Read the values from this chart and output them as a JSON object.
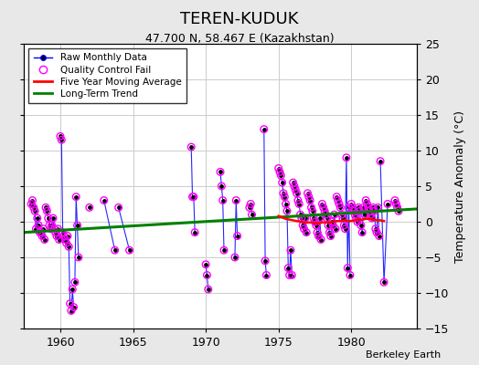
{
  "title": "TEREN-KUDUK",
  "subtitle": "47.700 N, 58.467 E (Kazakhstan)",
  "ylabel": "Temperature Anomaly (°C)",
  "watermark": "Berkeley Earth",
  "xlim": [
    1957.5,
    1984.5
  ],
  "ylim": [
    -15,
    25
  ],
  "yticks": [
    -15,
    -10,
    -5,
    0,
    5,
    10,
    15,
    20,
    25
  ],
  "xticks": [
    1960,
    1965,
    1970,
    1975,
    1980
  ],
  "bg_color": "#e8e8e8",
  "plot_bg_color": "#ffffff",
  "grid_color": "#cccccc",
  "raw_monthly": [
    {
      "year": 1958,
      "months": [
        2.5,
        3.0,
        2.0,
        1.5,
        -1.0,
        0.5,
        -0.5,
        -1.5,
        -1.5,
        -2.0,
        -1.0,
        -2.5
      ]
    },
    {
      "year": 1959,
      "months": [
        2.0,
        1.5,
        0.5,
        -0.5,
        -1.0,
        -0.5,
        0.5,
        -1.0,
        -1.5,
        -2.0,
        -1.0,
        -2.5
      ]
    },
    {
      "year": 1960,
      "months": [
        12.0,
        11.5,
        -1.5,
        -2.0,
        -2.5,
        -3.0,
        -2.0,
        -3.5,
        -11.5,
        -12.5,
        -9.5,
        -12.0
      ]
    },
    {
      "year": 1961,
      "months": [
        -8.5,
        3.5,
        -0.5,
        -5.0,
        null,
        null,
        null,
        null,
        null,
        null,
        null,
        null
      ]
    },
    {
      "year": 1962,
      "months": [
        2.0,
        null,
        null,
        null,
        null,
        null,
        null,
        null,
        null,
        null,
        null,
        null
      ]
    },
    {
      "year": 1963,
      "months": [
        3.0,
        null,
        null,
        null,
        null,
        null,
        null,
        null,
        null,
        -4.0,
        null,
        null
      ]
    },
    {
      "year": 1964,
      "months": [
        2.0,
        null,
        null,
        null,
        null,
        null,
        null,
        null,
        null,
        -4.0,
        null,
        null
      ]
    },
    {
      "year": 1969,
      "months": [
        10.5,
        3.5,
        3.5,
        -1.5,
        null,
        null,
        null,
        null,
        null,
        null,
        null,
        null
      ]
    },
    {
      "year": 1970,
      "months": [
        -6.0,
        -7.5,
        -9.5,
        null,
        null,
        null,
        null,
        null,
        null,
        null,
        null,
        null
      ]
    },
    {
      "year": 1971,
      "months": [
        7.0,
        5.0,
        3.0,
        -4.0,
        null,
        null,
        null,
        null,
        null,
        null,
        null,
        null
      ]
    },
    {
      "year": 1972,
      "months": [
        -5.0,
        3.0,
        -2.0,
        null,
        null,
        null,
        null,
        null,
        null,
        null,
        null,
        null
      ]
    },
    {
      "year": 1973,
      "months": [
        2.0,
        2.5,
        1.0,
        null,
        null,
        null,
        null,
        null,
        null,
        null,
        null,
        null
      ]
    },
    {
      "year": 1974,
      "months": [
        13.0,
        -5.5,
        -7.5,
        null,
        null,
        null,
        null,
        null,
        null,
        null,
        null,
        null
      ]
    },
    {
      "year": 1975,
      "months": [
        7.5,
        7.0,
        6.5,
        5.5,
        4.0,
        3.5,
        2.5,
        1.5,
        -6.5,
        -7.5,
        -4.0,
        -7.5
      ]
    },
    {
      "year": 1976,
      "months": [
        5.5,
        5.0,
        4.5,
        4.0,
        3.0,
        2.5,
        1.0,
        0.5,
        -0.5,
        -1.0,
        0.5,
        -1.5
      ]
    },
    {
      "year": 1977,
      "months": [
        4.0,
        3.5,
        3.0,
        2.0,
        1.5,
        0.5,
        0.0,
        -0.5,
        -1.5,
        -2.0,
        0.5,
        -2.5
      ]
    },
    {
      "year": 1978,
      "months": [
        2.5,
        2.0,
        1.5,
        1.0,
        0.5,
        -0.5,
        -1.5,
        -2.0,
        0.0,
        -0.5,
        1.0,
        -1.0
      ]
    },
    {
      "year": 1979,
      "months": [
        3.5,
        3.0,
        2.5,
        2.0,
        1.0,
        0.5,
        -0.5,
        -1.0,
        9.0,
        -6.5,
        2.0,
        -7.5
      ]
    },
    {
      "year": 1980,
      "months": [
        2.5,
        2.0,
        1.5,
        1.0,
        0.5,
        0.0,
        2.0,
        1.5,
        -0.5,
        -1.5,
        2.0,
        1.0
      ]
    },
    {
      "year": 1981,
      "months": [
        3.0,
        2.5,
        2.0,
        1.5,
        1.0,
        0.5,
        2.0,
        1.5,
        -1.0,
        -1.5,
        2.0,
        -2.0
      ]
    },
    {
      "year": 1982,
      "months": [
        8.5,
        null,
        null,
        -8.5,
        null,
        null,
        2.5,
        null,
        null,
        null,
        null,
        null
      ]
    },
    {
      "year": 1983,
      "months": [
        3.0,
        2.5,
        2.0,
        1.5,
        null,
        null,
        null,
        null,
        null,
        null,
        null,
        null
      ]
    }
  ],
  "trend_x": [
    1957.5,
    1984.5
  ],
  "trend_y": [
    -1.5,
    1.8
  ],
  "ma5_x": [
    1975.0,
    1975.25,
    1975.5,
    1975.75,
    1976.0,
    1976.25,
    1976.5,
    1976.75,
    1977.0,
    1977.25,
    1977.5,
    1977.75,
    1978.0,
    1978.25,
    1978.5,
    1978.75,
    1979.0,
    1979.25,
    1979.5,
    1979.75,
    1980.0,
    1980.25,
    1980.5,
    1980.75,
    1981.0,
    1981.25,
    1981.5,
    1981.75,
    1982.0,
    1982.25
  ],
  "ma5_y": [
    0.8,
    0.6,
    0.4,
    0.3,
    0.2,
    0.1,
    0.0,
    -0.1,
    -0.1,
    -0.1,
    -0.2,
    -0.2,
    -0.1,
    -0.1,
    -0.1,
    -0.0,
    0.1,
    0.1,
    0.2,
    0.1,
    0.1,
    0.2,
    0.3,
    0.3,
    0.4,
    0.4,
    0.3,
    0.2,
    0.2,
    0.1
  ]
}
